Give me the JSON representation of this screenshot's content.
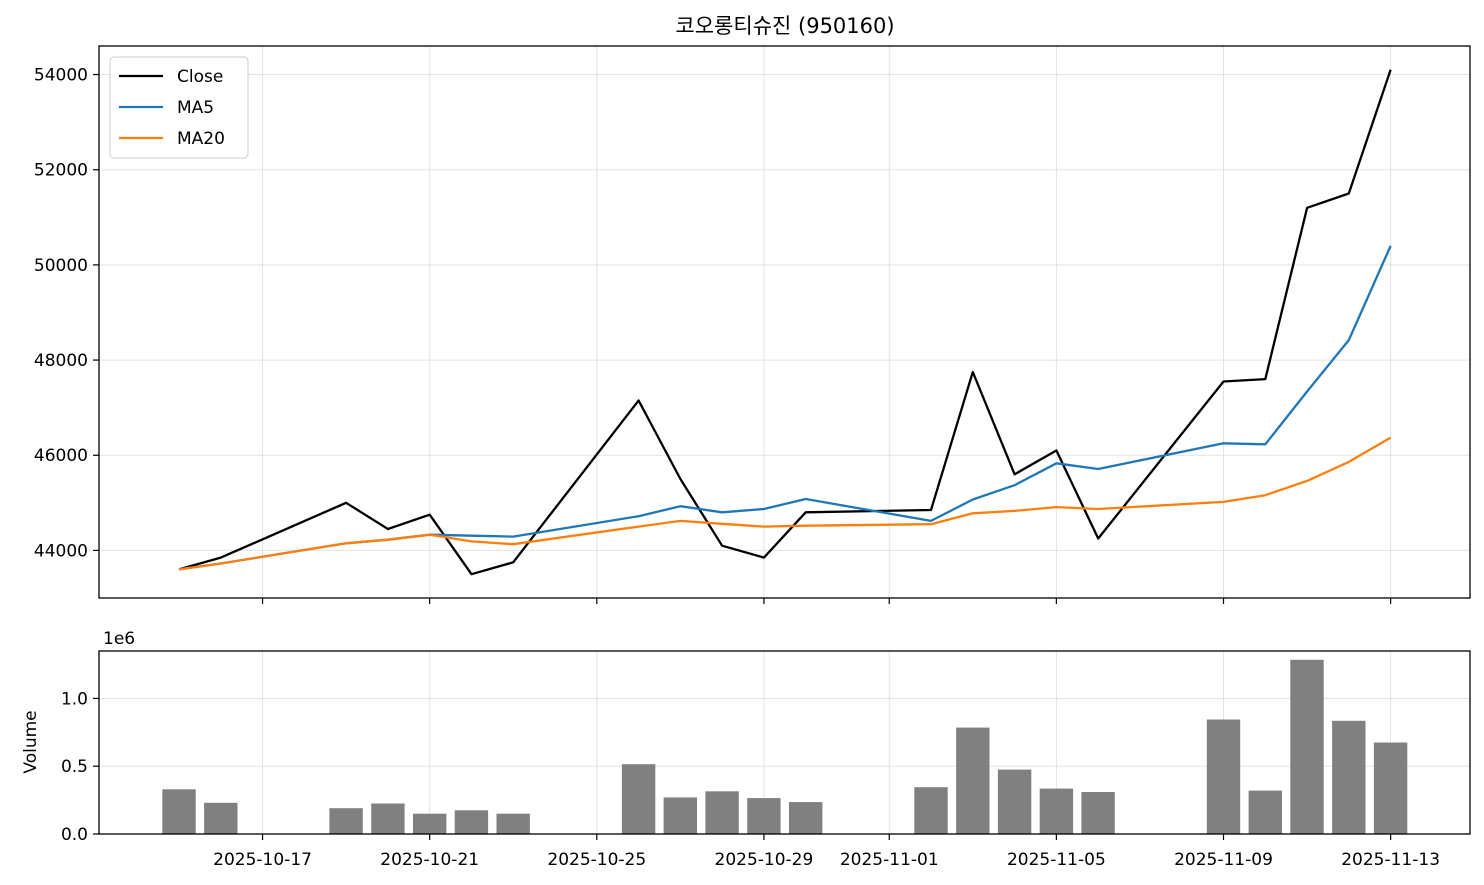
{
  "chart_data": [
    {
      "type": "line",
      "title": "코오롱티슈진 (950160)",
      "ylim": [
        43000,
        54600
      ],
      "yticks": [
        44000,
        46000,
        48000,
        50000,
        52000,
        54000
      ],
      "grid": true,
      "legend": "top-left",
      "dates": [
        "2025-10-15",
        "2025-10-16",
        "2025-10-19",
        "2025-10-20",
        "2025-10-21",
        "2025-10-22",
        "2025-10-23",
        "2025-10-26",
        "2025-10-27",
        "2025-10-28",
        "2025-10-29",
        "2025-10-30",
        "2025-11-02",
        "2025-11-03",
        "2025-11-04",
        "2025-11-05",
        "2025-11-06",
        "2025-11-09",
        "2025-11-10",
        "2025-11-11",
        "2025-11-12",
        "2025-11-13"
      ],
      "series": [
        {
          "name": "Close",
          "color": "#000000",
          "values": [
            43600,
            43850,
            45000,
            44450,
            44750,
            43500,
            43750,
            47150,
            45500,
            44100,
            43850,
            44800,
            44850,
            47750,
            45600,
            46100,
            44250,
            47550,
            47600,
            51200,
            51500,
            54100
          ]
        },
        {
          "name": "MA5",
          "color": "#1f77b4",
          "values": [
            43600,
            43725,
            44150,
            44225,
            44330,
            44310,
            44290,
            44720,
            44930,
            44800,
            44870,
            45080,
            44620,
            45070,
            45370,
            45830,
            45710,
            46250,
            46230,
            47340,
            48420,
            50400
          ]
        },
        {
          "name": "MA20",
          "color": "#ff7f0e",
          "values": [
            43600,
            43725,
            44150,
            44225,
            44330,
            44190,
            44130,
            44500,
            44620,
            44560,
            44500,
            44520,
            44550,
            44780,
            44830,
            44910,
            44870,
            45020,
            45160,
            45460,
            45860,
            46370
          ]
        }
      ]
    },
    {
      "type": "bar",
      "ylabel": "Volume",
      "offset_label": "1e6",
      "ylim": [
        0,
        1.35
      ],
      "yticks": [
        0.0,
        0.5,
        1.0
      ],
      "ytick_labels": [
        "0.0",
        "0.5",
        "1.0"
      ],
      "grid": true,
      "color": "#808080",
      "dates": [
        "2025-10-15",
        "2025-10-16",
        "2025-10-19",
        "2025-10-20",
        "2025-10-21",
        "2025-10-22",
        "2025-10-23",
        "2025-10-26",
        "2025-10-27",
        "2025-10-28",
        "2025-10-29",
        "2025-10-30",
        "2025-11-02",
        "2025-11-03",
        "2025-11-04",
        "2025-11-05",
        "2025-11-06",
        "2025-11-09",
        "2025-11-10",
        "2025-11-11",
        "2025-11-12",
        "2025-11-13"
      ],
      "values": [
        0.33,
        0.23,
        0.19,
        0.225,
        0.15,
        0.175,
        0.15,
        0.515,
        0.27,
        0.315,
        0.265,
        0.235,
        0.345,
        0.785,
        0.475,
        0.335,
        0.31,
        0.845,
        0.32,
        1.285,
        0.835,
        0.675
      ],
      "xtick_labels": [
        "2025-10-17",
        "2025-10-21",
        "2025-10-25",
        "2025-10-29",
        "2025-11-01",
        "2025-11-05",
        "2025-11-09",
        "2025-11-13"
      ]
    }
  ]
}
